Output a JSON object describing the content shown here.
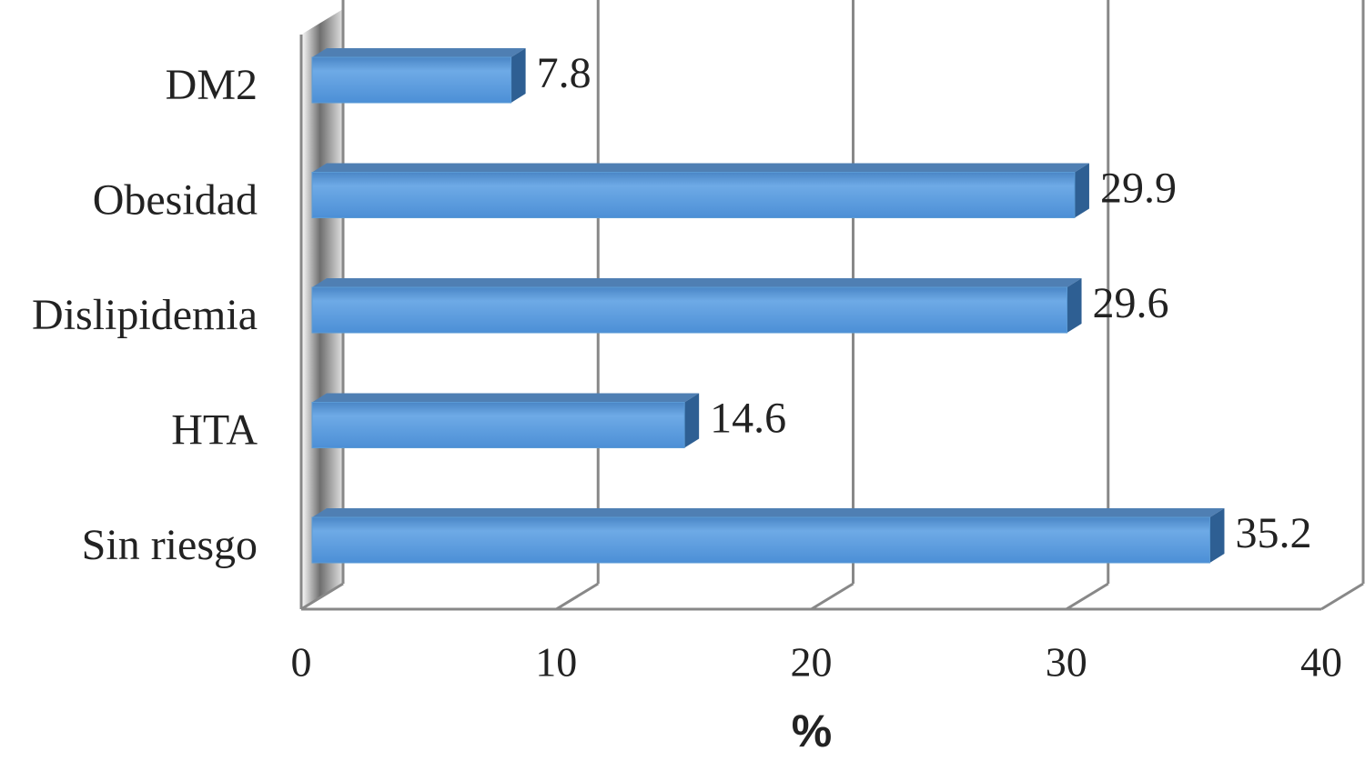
{
  "chart_data": {
    "type": "bar",
    "orientation": "horizontal",
    "categories": [
      "DM2",
      "Obesidad",
      "Dislipidemia",
      "HTA",
      "Sin riesgo"
    ],
    "values": [
      7.8,
      29.9,
      29.6,
      14.6,
      35.2
    ],
    "color": "#5b9bd5",
    "xlabel": "%",
    "xlim": [
      0,
      40
    ],
    "xticks": [
      0,
      10,
      20,
      30,
      40
    ],
    "grid": true
  }
}
